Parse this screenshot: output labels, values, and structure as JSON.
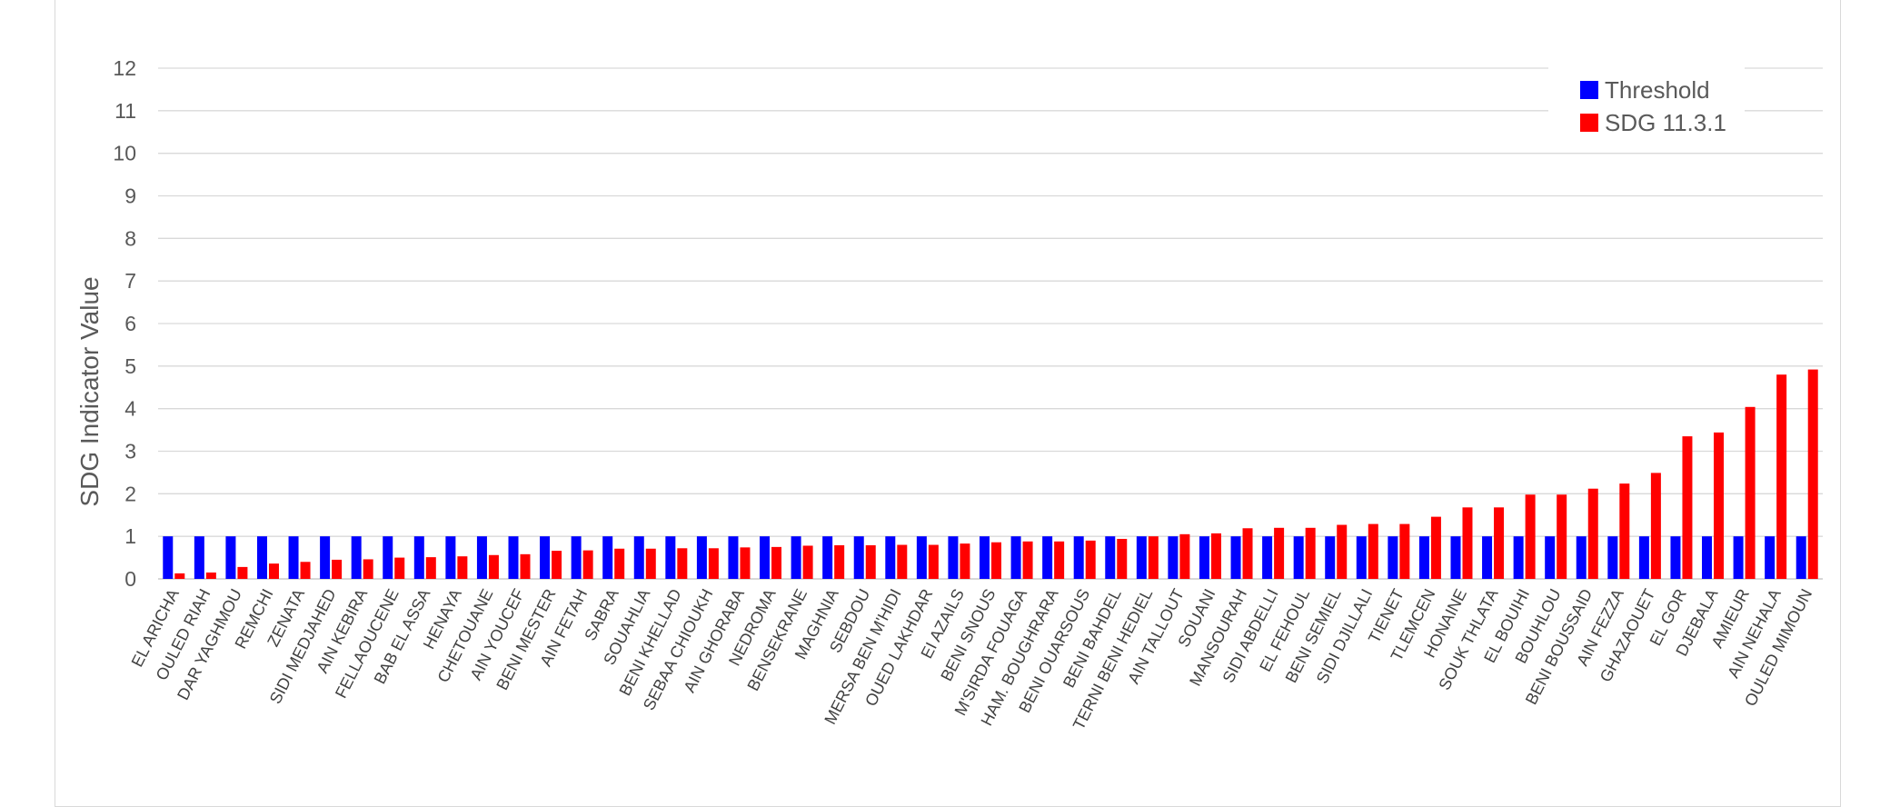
{
  "chart_data": {
    "type": "bar",
    "title": "",
    "xlabel": "",
    "ylabel": "SDG Indicator Value",
    "ylim": [
      0,
      12
    ],
    "yticks": [
      0,
      1,
      2,
      3,
      4,
      5,
      6,
      7,
      8,
      9,
      10,
      11,
      12
    ],
    "grid": true,
    "legend_position": "top-right",
    "categories": [
      "EL ARICHA",
      "OULED RIAH",
      "DAR YAGHMOU",
      "REMCHI",
      "ZENATA",
      "SIDI MEDJAHED",
      "AIN KEBIRA",
      "FELLAOUCENE",
      "BAB EL ASSA",
      "HENAYA",
      "CHETOUANE",
      "AIN YOUCEF",
      "BENI MESTER",
      "AIN FETAH",
      "SABRA",
      "SOUAHLIA",
      "BENI KHELLAD",
      "SEBAA CHIOUKH",
      "AIN GHORABA",
      "NEDROMA",
      "BENSEKRANE",
      "MAGHNIA",
      "SEBDOU",
      "MERSA BEN M'HIDI",
      "OUED LAKHDAR",
      "EI AZAILS",
      "BENI SNOUS",
      "M'SIRDA FOUAGA",
      "HAM. BOUGHRARA",
      "BENI OUARSOUS",
      "BENI BAHDEL",
      "TERNI BENI HEDIEL",
      "AIN TALLOUT",
      "SOUANI",
      "MANSOURAH",
      "SIDI ABDELLI",
      "EL FEHOUL",
      "BENI SEMIEL",
      "SIDI DJILLALI",
      "TIENET",
      "TLEMCEN",
      "HONAINE",
      "SOUK THLATA",
      "EL BOUIHI",
      "BOUHLOU",
      "BENI BOUSSAID",
      "AIN FEZZA",
      "GHAZAOUET",
      "EL GOR",
      "DJEBALA",
      "AMIEUR",
      "AIN NEHALA",
      "OULED MIMOUN"
    ],
    "series": [
      {
        "name": "Threshold",
        "color": "#0000ff",
        "values": [
          1,
          1,
          1,
          1,
          1,
          1,
          1,
          1,
          1,
          1,
          1,
          1,
          1,
          1,
          1,
          1,
          1,
          1,
          1,
          1,
          1,
          1,
          1,
          1,
          1,
          1,
          1,
          1,
          1,
          1,
          1,
          1,
          1,
          1,
          1,
          1,
          1,
          1,
          1,
          1,
          1,
          1,
          1,
          1,
          1,
          1,
          1,
          1,
          1,
          1,
          1,
          1,
          1
        ]
      },
      {
        "name": "SDG 11.3.1",
        "color": "#ff0000",
        "values": [
          0.13,
          0.15,
          0.28,
          0.36,
          0.4,
          0.45,
          0.46,
          0.5,
          0.51,
          0.53,
          0.56,
          0.58,
          0.66,
          0.67,
          0.71,
          0.71,
          0.72,
          0.72,
          0.74,
          0.75,
          0.78,
          0.79,
          0.79,
          0.8,
          0.8,
          0.83,
          0.86,
          0.88,
          0.88,
          0.9,
          0.94,
          1.0,
          1.05,
          1.07,
          1.19,
          1.2,
          1.2,
          1.27,
          1.29,
          1.29,
          1.46,
          1.68,
          1.68,
          1.98,
          1.98,
          2.12,
          2.24,
          2.49,
          3.35,
          3.44,
          4.04,
          4.8,
          4.92
        ]
      }
    ]
  }
}
